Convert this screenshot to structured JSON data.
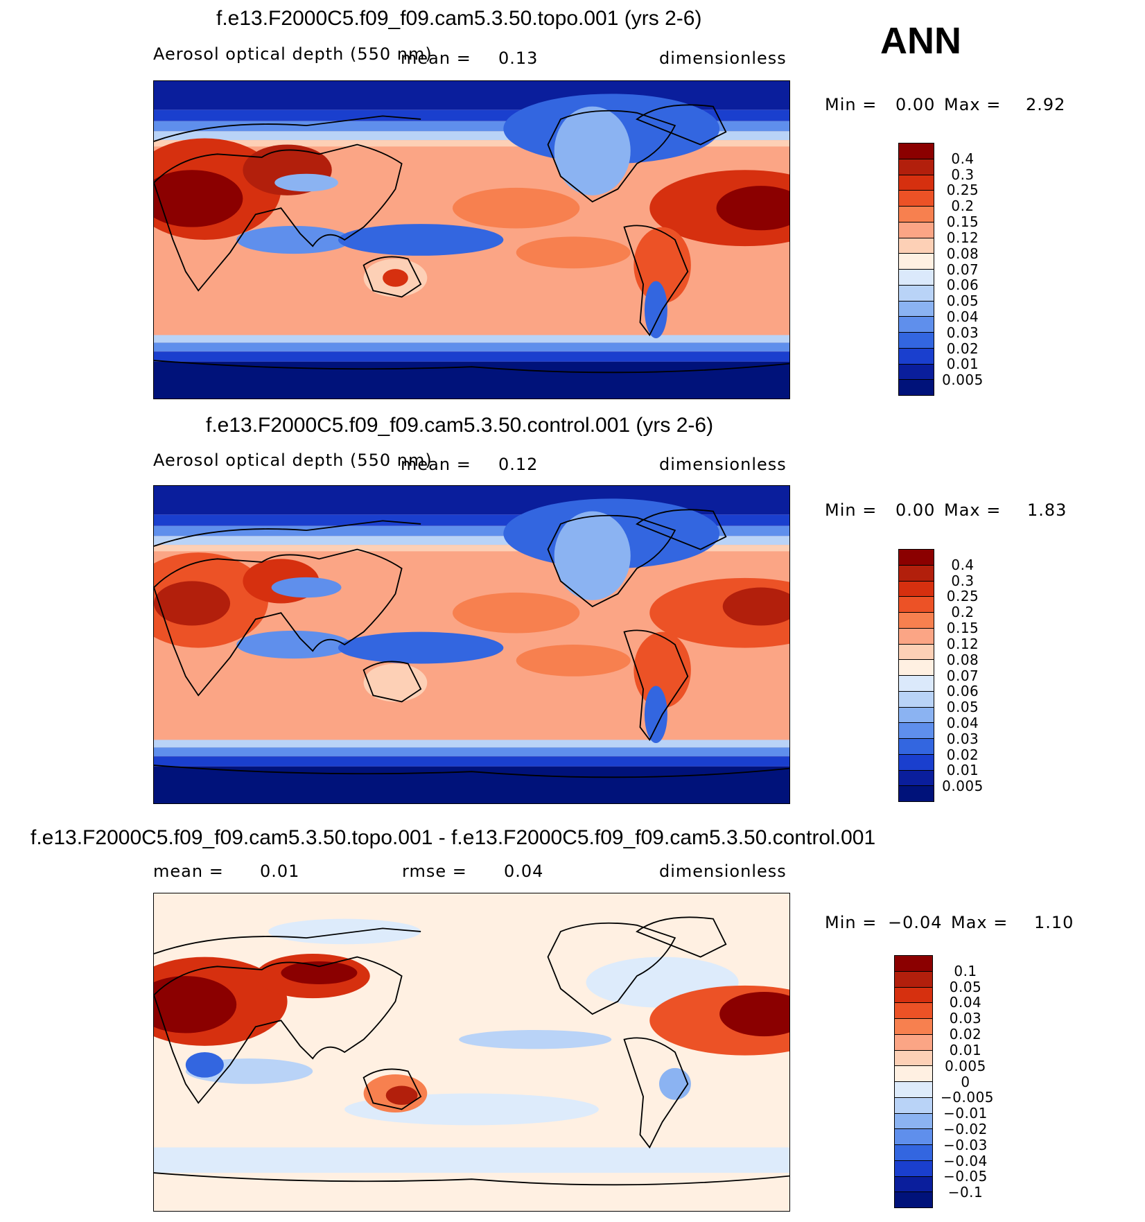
{
  "season": "ANN",
  "panels": [
    {
      "title": "f.e13.F2000C5.f09_f09.cam5.3.50.topo.001 (yrs 2-6)",
      "left_label": "Aerosol optical depth (550 nm)",
      "mid_label": "mean =",
      "mid_value": "0.13",
      "right_label": "dimensionless",
      "min_label": "Min =",
      "min_value": "0.00",
      "max_label": "Max =",
      "max_value": "2.92",
      "colorbar": [
        "0.4",
        "0.3",
        "0.25",
        "0.2",
        "0.15",
        "0.12",
        "0.08",
        "0.07",
        "0.06",
        "0.05",
        "0.04",
        "0.03",
        "0.02",
        "0.01",
        "0.005"
      ]
    },
    {
      "title": "f.e13.F2000C5.f09_f09.cam5.3.50.control.001 (yrs 2-6)",
      "left_label": "Aerosol optical depth (550 nm)",
      "mid_label": "mean =",
      "mid_value": "0.12",
      "right_label": "dimensionless",
      "min_label": "Min =",
      "min_value": "0.00",
      "max_label": "Max =",
      "max_value": "1.83",
      "colorbar": [
        "0.4",
        "0.3",
        "0.25",
        "0.2",
        "0.15",
        "0.12",
        "0.08",
        "0.07",
        "0.06",
        "0.05",
        "0.04",
        "0.03",
        "0.02",
        "0.01",
        "0.005"
      ]
    },
    {
      "title": "f.e13.F2000C5.f09_f09.cam5.3.50.topo.001 - f.e13.F2000C5.f09_f09.cam5.3.50.control.001",
      "mean_label": "mean =",
      "mean_value": "0.01",
      "rmse_label": "rmse =",
      "rmse_value": "0.04",
      "right_label": "dimensionless",
      "min_label": "Min =",
      "min_value": "−0.04",
      "max_label": "Max =",
      "max_value": "1.10",
      "colorbar": [
        "0.1",
        "0.05",
        "0.04",
        "0.03",
        "0.02",
        "0.01",
        "0.005",
        "0",
        "−0.005",
        "−0.01",
        "−0.02",
        "−0.03",
        "−0.04",
        "−0.05",
        "−0.1"
      ]
    }
  ],
  "colors": {
    "seq": [
      "#8b0000",
      "#b21f0c",
      "#d6300f",
      "#ec5226",
      "#f7804f",
      "#fba585",
      "#fdd0b6",
      "#fff0e2",
      "#dbe9fb",
      "#b9d3f7",
      "#8bb3f2",
      "#5f8fec",
      "#3366e0",
      "#1a3fce",
      "#0a1e9c",
      "#00127a"
    ],
    "diff": [
      "#8b0000",
      "#b21f0c",
      "#d6300f",
      "#ec5226",
      "#f7804f",
      "#fba585",
      "#fdd0b6",
      "#fff0e2",
      "#ddebfb",
      "#b9d3f7",
      "#8bb3f2",
      "#5f8fec",
      "#3366e0",
      "#1a3fce",
      "#0a1e9c",
      "#00127a"
    ]
  }
}
